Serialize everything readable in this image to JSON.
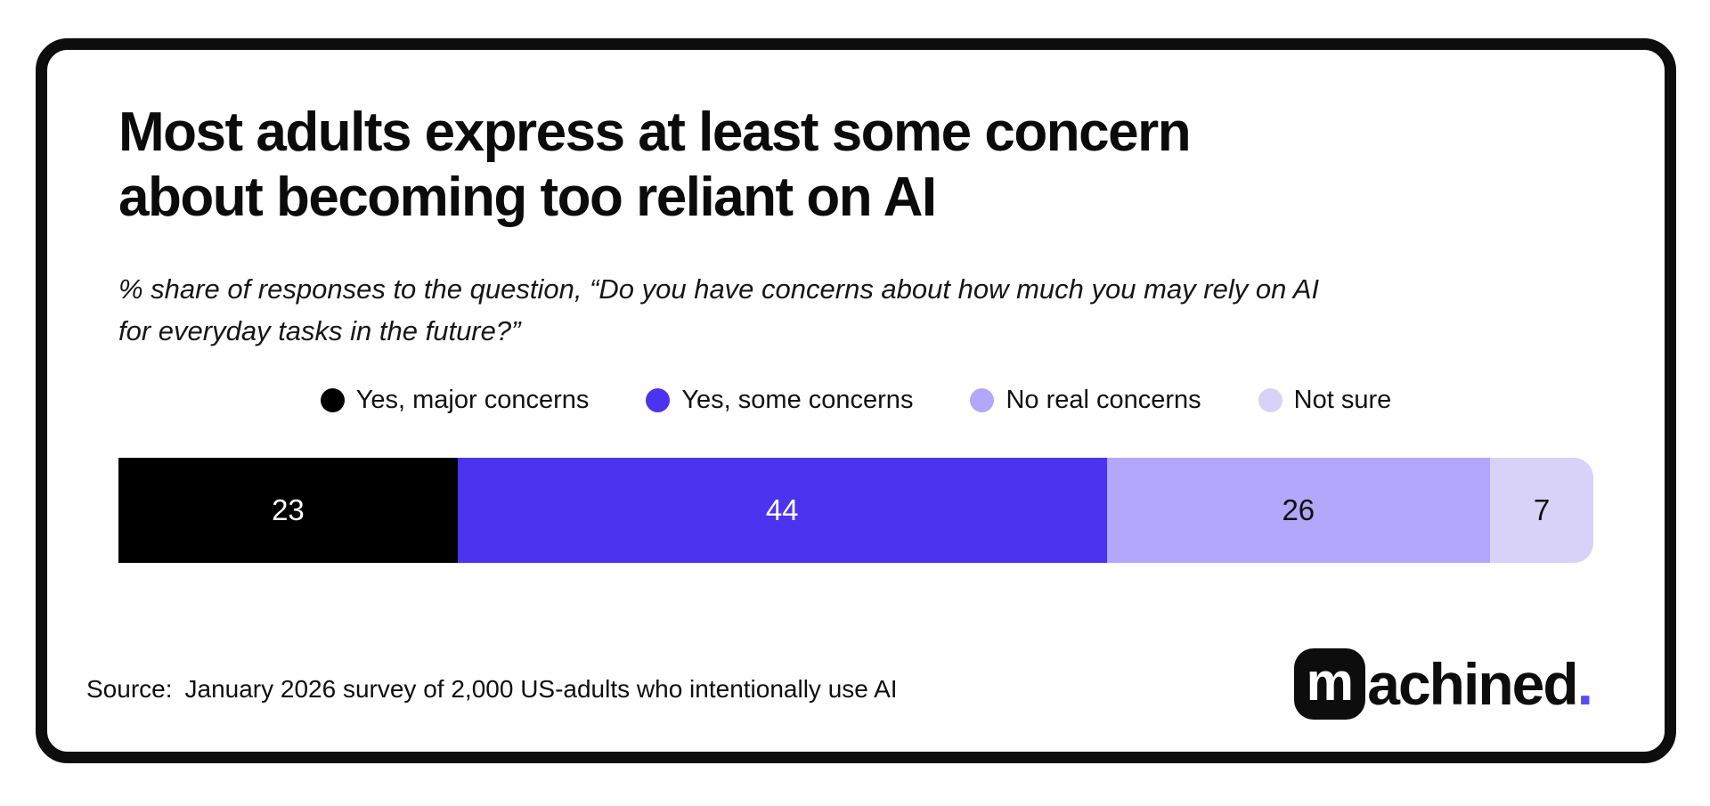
{
  "chart_data": {
    "type": "bar",
    "orientation": "horizontal",
    "stacked": true,
    "unit": "%",
    "title_lines": [
      "Most adults express at least some concern",
      "about becoming too reliant on AI"
    ],
    "subtitle_lines": [
      "% share of responses to the question, “Do you have concerns about how much you may rely on AI",
      "for everyday tasks in the future?”"
    ],
    "categories": [
      "Yes, major concerns",
      "Yes, some concerns",
      "No real concerns",
      "Not sure"
    ],
    "values": [
      23,
      44,
      26,
      7
    ],
    "colors": [
      "#000000",
      "#4B33F0",
      "#B2A7FA",
      "#D8D2F8"
    ],
    "value_label_colors": [
      "#ffffff",
      "#ffffff",
      "#101010",
      "#101010"
    ],
    "xlim": [
      0,
      100
    ],
    "grid": false,
    "legend_position": "top",
    "value_labels_shown": true
  },
  "source": {
    "label": "Source:",
    "text": "January 2026 survey of 2,000 US-adults who intentionally use AI"
  },
  "logo": {
    "badge_letter": "m",
    "badge_bg": "#0d0d0d",
    "badge_letter_color": "#ffffff",
    "wordmark": "achined",
    "period": ".",
    "period_color": "#5B4BF7"
  },
  "card": {
    "border_color": "#0d0d0d",
    "background": "#ffffff"
  }
}
